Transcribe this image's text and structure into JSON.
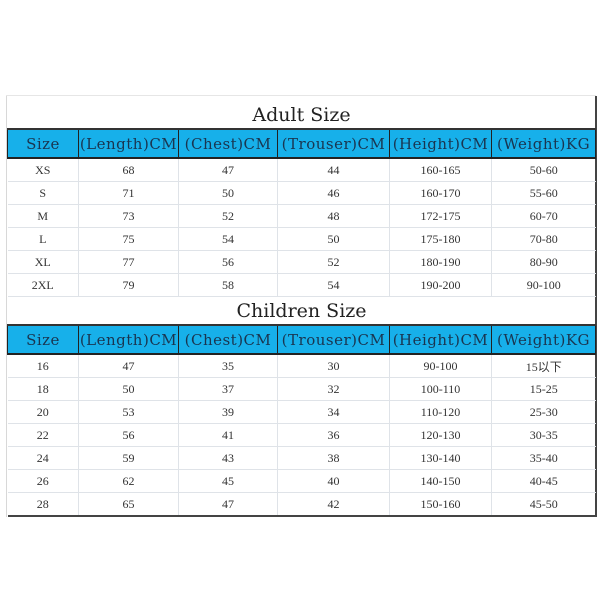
{
  "header_color": "#17b0ea",
  "columns": [
    "Size",
    "(Length)CM",
    "(Chest)CM",
    "(Trouser)CM",
    "(Height)CM",
    "(Weight)KG"
  ],
  "adult": {
    "title": "Adult Size",
    "rows": [
      [
        "XS",
        "68",
        "47",
        "44",
        "160-165",
        "50-60"
      ],
      [
        "S",
        "71",
        "50",
        "46",
        "160-170",
        "55-60"
      ],
      [
        "M",
        "73",
        "52",
        "48",
        "172-175",
        "60-70"
      ],
      [
        "L",
        "75",
        "54",
        "50",
        "175-180",
        "70-80"
      ],
      [
        "XL",
        "77",
        "56",
        "52",
        "180-190",
        "80-90"
      ],
      [
        "2XL",
        "79",
        "58",
        "54",
        "190-200",
        "90-100"
      ]
    ]
  },
  "children": {
    "title": "Children Size",
    "rows": [
      [
        "16",
        "47",
        "35",
        "30",
        "90-100",
        "15以下"
      ],
      [
        "18",
        "50",
        "37",
        "32",
        "100-110",
        "15-25"
      ],
      [
        "20",
        "53",
        "39",
        "34",
        "110-120",
        "25-30"
      ],
      [
        "22",
        "56",
        "41",
        "36",
        "120-130",
        "30-35"
      ],
      [
        "24",
        "59",
        "43",
        "38",
        "130-140",
        "35-40"
      ],
      [
        "26",
        "62",
        "45",
        "40",
        "140-150",
        "40-45"
      ],
      [
        "28",
        "65",
        "47",
        "42",
        "150-160",
        "45-50"
      ]
    ]
  }
}
